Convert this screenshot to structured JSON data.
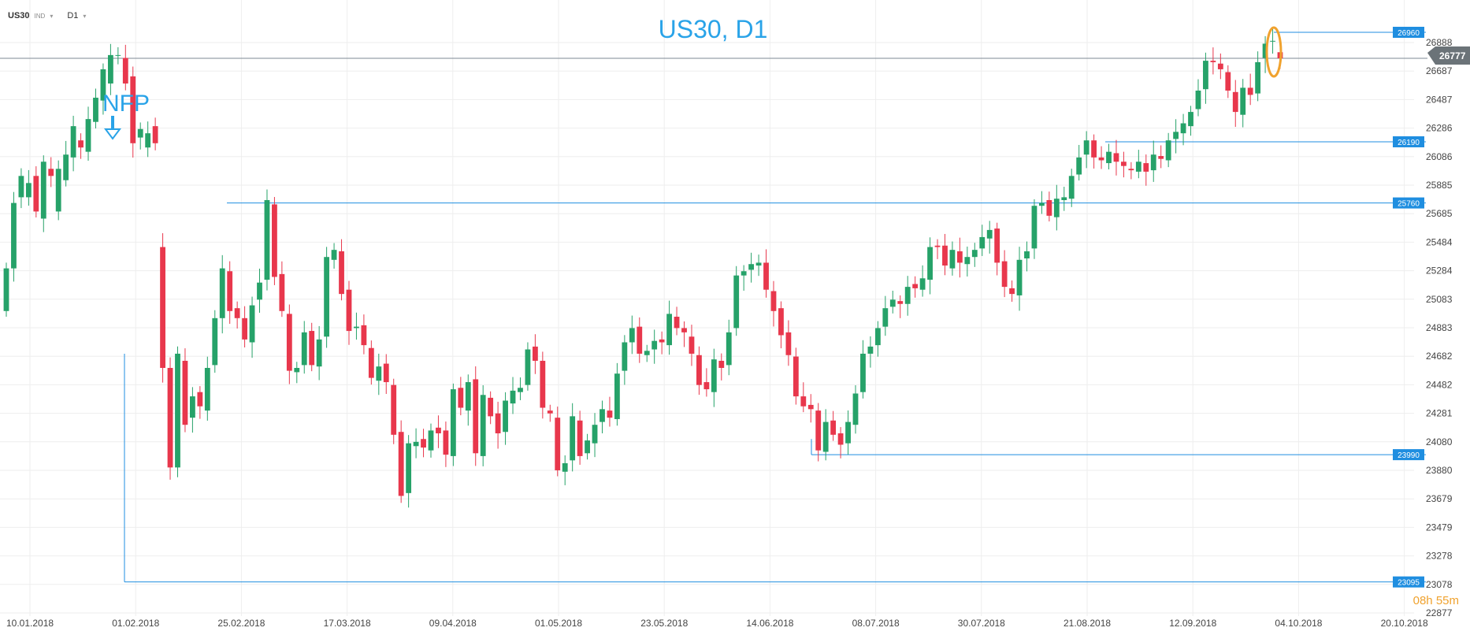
{
  "toolbar": {
    "symbol": "US30",
    "instrument_type": "IND",
    "timeframe": "D1",
    "caret": "▾"
  },
  "countdown": {
    "hours": "08",
    "h": "h",
    "minutes": "55",
    "m": "m"
  },
  "colors": {
    "bull": "#26a269",
    "bear": "#e8374c",
    "level_line": "#1f8ee0",
    "level_label_bg": "#1f8ee0",
    "title": "#29a3e8",
    "current_price_bg": "#6b7378",
    "highlight": "#f0a22e",
    "grid": "#eeeeee"
  },
  "chart_data": {
    "type": "candlestick",
    "title": "US30, D1",
    "annotation": "NFP",
    "current_price": "26777",
    "y_ticks": [
      "26888",
      "26687",
      "26487",
      "26286",
      "26086",
      "25885",
      "25685",
      "25484",
      "25284",
      "25083",
      "24883",
      "24682",
      "24482",
      "24281",
      "24080",
      "23880",
      "23679",
      "23479",
      "23278",
      "23078",
      "22877"
    ],
    "x_ticks": [
      "10.01.2018",
      "01.02.2018",
      "25.02.2018",
      "17.03.2018",
      "09.04.2018",
      "01.05.2018",
      "23.05.2018",
      "14.06.2018",
      "08.07.2018",
      "30.07.2018",
      "21.08.2018",
      "12.09.2018",
      "04.10.2018",
      "20.10.2018"
    ],
    "ylim": [
      22877,
      26888
    ],
    "levels": [
      {
        "label": "26960",
        "value": 26960
      },
      {
        "label": "26190",
        "value": 26190
      },
      {
        "label": "25760",
        "value": 25760
      },
      {
        "label": "23990",
        "value": 23990
      },
      {
        "label": "23095",
        "value": 23095
      }
    ],
    "closes": [
      25300,
      25760,
      25950,
      25900,
      25700,
      26050,
      25950,
      26000,
      26100,
      26300,
      26150,
      26350,
      26500,
      26700,
      26800,
      26800,
      26600,
      26180,
      26280,
      26250,
      26180,
      24600,
      23900,
      24700,
      24200,
      24400,
      24330,
      24600,
      24950,
      25300,
      25000,
      24950,
      24800,
      25040,
      25200,
      25780,
      25240,
      25000,
      24580,
      24600,
      24850,
      24620,
      24800,
      25380,
      25430,
      25120,
      24860,
      24890,
      24760,
      24530,
      24610,
      24500,
      24130,
      23700,
      24070,
      24080,
      24040,
      24160,
      24140,
      23990,
      24450,
      24320,
      24500,
      24000,
      24410,
      24260,
      24140,
      24370,
      24440,
      24460,
      24730,
      24650,
      24320,
      24280,
      23880,
      23930,
      24260,
      23980,
      24090,
      24200,
      24310,
      24250,
      24560,
      24780,
      24880,
      24700,
      24720,
      24790,
      24780,
      24980,
      24880,
      24850,
      24700,
      24480,
      24450,
      24660,
      24600,
      24850,
      25250,
      25280,
      25330,
      25340,
      25150,
      25000,
      24830,
      24690,
      24400,
      24330,
      24310,
      24020,
      24220,
      24130,
      24060,
      24220,
      24420,
      24700,
      24750,
      24880,
      25020,
      25080,
      25050,
      25170,
      25160,
      25230,
      25450,
      25450,
      25320,
      25430,
      25340,
      25380,
      25430,
      25520,
      25570,
      25340,
      25170,
      25120,
      25360,
      25420,
      25740,
      25760,
      25670,
      25790,
      25800,
      25950,
      26080,
      26200,
      26080,
      26060,
      26120,
      26050,
      26020,
      25990,
      26050,
      25980,
      26100,
      26070,
      26200,
      26260,
      26320,
      26400,
      26550,
      26760,
      26750,
      26700,
      26550,
      26400,
      26570,
      26520,
      26750,
      26880,
      26900,
      26777
    ],
    "opens": [
      25000,
      25300,
      25800,
      25800,
      25950,
      25650,
      26000,
      25700,
      25920,
      26080,
      26200,
      26120,
      26330,
      26480,
      26600,
      26800,
      26780,
      26650,
      26220,
      26150,
      26300,
      25450,
      24600,
      23900,
      24650,
      24250,
      24430,
      24300,
      24620,
      24950,
      25280,
      25020,
      24950,
      24780,
      25080,
      25220,
      25750,
      25260,
      24980,
      24570,
      24620,
      24860,
      24610,
      24820,
      25360,
      25420,
      25150,
      24880,
      24900,
      24740,
      24510,
      24630,
      24480,
      24150,
      23720,
      24050,
      24100,
      24020,
      24180,
      24160,
      23980,
      24460,
      24300,
      24520,
      23980,
      24390,
      24280,
      24150,
      24350,
      24430,
      24480,
      24750,
      24650,
      24300,
      24250,
      23870,
      23950,
      24230,
      24000,
      24070,
      24220,
      24300,
      24240,
      24580,
      24780,
      24890,
      24690,
      24730,
      24800,
      24760,
      24960,
      24880,
      24820,
      24690,
      24500,
      24430,
      24650,
      24620,
      24880,
      25250,
      25290,
      25320,
      25340,
      25140,
      25020,
      24850,
      24680,
      24400,
      24340,
      24300,
      24010,
      24230,
      24140,
      24070,
      24200,
      24430,
      24700,
      24760,
      24890,
      25030,
      25070,
      25050,
      25190,
      25150,
      25220,
      25460,
      25460,
      25300,
      25420,
      25330,
      25380,
      25440,
      25510,
      25580,
      25350,
      25160,
      25110,
      25370,
      25440,
      25740,
      25780,
      25660,
      25780,
      25790,
      25960,
      26100,
      26200,
      26080,
      26040,
      26110,
      26050,
      26000,
      25980,
      26040,
      25990,
      26090,
      26060,
      26210,
      26250,
      26300,
      26420,
      26560,
      26760,
      26740,
      26680,
      26540,
      26380,
      26570,
      26530,
      26780,
      26900,
      26820
    ]
  }
}
